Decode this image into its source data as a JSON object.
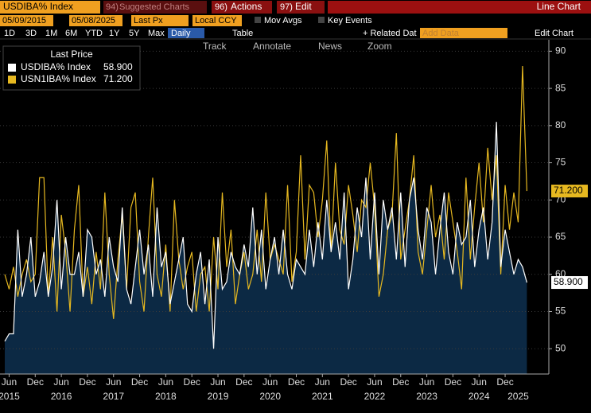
{
  "ui": {
    "ticker": "USDIBA% Index",
    "suggested_num": "94)",
    "suggested": "Suggested Charts",
    "actions_num": "96)",
    "actions": "Actions",
    "edit_num": "97)",
    "edit": "Edit",
    "chart_type": "Line Chart",
    "start_date": "05/09/2015",
    "end_date": "05/08/2025",
    "field": "Last Px",
    "currency": "Local CCY",
    "mov_avgs": "Mov Avgs",
    "key_events": "Key Events",
    "periods": [
      "1D",
      "3D",
      "1M",
      "6M",
      "YTD",
      "1Y",
      "5Y",
      "Max"
    ],
    "frequency": "Daily",
    "table": "Table",
    "related": "+ Related Dat",
    "add_data": "Add Data",
    "edit_chart": "Edit Chart",
    "tools": [
      "Track",
      "Annotate",
      "News",
      "Zoom"
    ]
  },
  "chart_data": {
    "type": "line",
    "legend_title": "Last Price",
    "x": [
      "2015-05",
      "2015-06",
      "2015-07",
      "2015-08",
      "2015-09",
      "2015-10",
      "2015-11",
      "2015-12",
      "2016-01",
      "2016-02",
      "2016-03",
      "2016-04",
      "2016-05",
      "2016-06",
      "2016-07",
      "2016-08",
      "2016-09",
      "2016-10",
      "2016-11",
      "2016-12",
      "2017-01",
      "2017-02",
      "2017-03",
      "2017-04",
      "2017-05",
      "2017-06",
      "2017-07",
      "2017-08",
      "2017-09",
      "2017-10",
      "2017-11",
      "2017-12",
      "2018-01",
      "2018-02",
      "2018-03",
      "2018-04",
      "2018-05",
      "2018-06",
      "2018-07",
      "2018-08",
      "2018-09",
      "2018-10",
      "2018-11",
      "2018-12",
      "2019-01",
      "2019-02",
      "2019-03",
      "2019-04",
      "2019-05",
      "2019-06",
      "2019-07",
      "2019-08",
      "2019-09",
      "2019-10",
      "2019-11",
      "2019-12",
      "2020-01",
      "2020-02",
      "2020-03",
      "2020-04",
      "2020-05",
      "2020-06",
      "2020-07",
      "2020-08",
      "2020-09",
      "2020-10",
      "2020-11",
      "2020-12",
      "2021-01",
      "2021-02",
      "2021-03",
      "2021-04",
      "2021-05",
      "2021-06",
      "2021-07",
      "2021-08",
      "2021-09",
      "2021-10",
      "2021-11",
      "2021-12",
      "2022-01",
      "2022-02",
      "2022-03",
      "2022-04",
      "2022-05",
      "2022-06",
      "2022-07",
      "2022-08",
      "2022-09",
      "2022-10",
      "2022-11",
      "2022-12",
      "2023-01",
      "2023-02",
      "2023-03",
      "2023-04",
      "2023-05",
      "2023-06",
      "2023-07",
      "2023-08",
      "2023-09",
      "2023-10",
      "2023-11",
      "2023-12",
      "2024-01",
      "2024-02",
      "2024-03",
      "2024-04",
      "2024-05",
      "2024-06",
      "2024-07",
      "2024-08",
      "2024-09",
      "2024-10",
      "2024-11",
      "2024-12",
      "2025-01",
      "2025-02",
      "2025-03",
      "2025-04",
      "2025-05"
    ],
    "series": [
      {
        "name": "USDIBA% Index",
        "color": "#ffffff",
        "last_label": "58.900",
        "fill": "#0c2944",
        "values": [
          51,
          52,
          52,
          66,
          57,
          60,
          65,
          57,
          59,
          63,
          57,
          61,
          70,
          58,
          65,
          60,
          60,
          63,
          57,
          66,
          65,
          60,
          62,
          57,
          65,
          61,
          59,
          69,
          58,
          56,
          61,
          66,
          60,
          64,
          57,
          69,
          61,
          63,
          56,
          59,
          62,
          65,
          56,
          55,
          60,
          63,
          56,
          62,
          50,
          65,
          58,
          59,
          63,
          61,
          60,
          64,
          61,
          69,
          60,
          66,
          58,
          62,
          65,
          60,
          66,
          60,
          58,
          62,
          61,
          60,
          66,
          61,
          67,
          62,
          70,
          63,
          67,
          62,
          71,
          58,
          62,
          69,
          65,
          73,
          62,
          71,
          60,
          70,
          66,
          69,
          62,
          71,
          61,
          70,
          73,
          66,
          62,
          69,
          67,
          60,
          66,
          71,
          63,
          60,
          67,
          64,
          65,
          70,
          61,
          66,
          69,
          62,
          67,
          80.5,
          61,
          66,
          63,
          60,
          62,
          61,
          58.9
        ]
      },
      {
        "name": "USN1IBA% Index",
        "color": "#e6b820",
        "last_label": "71.200",
        "values": [
          60,
          58,
          61,
          57,
          60,
          62,
          59,
          60,
          73,
          73,
          57,
          65,
          55,
          68,
          63,
          55,
          66,
          72,
          57,
          61,
          56,
          63,
          58,
          71,
          60,
          54,
          62,
          68,
          58,
          69,
          71,
          59,
          55,
          65,
          73,
          60,
          57,
          64,
          55,
          70,
          62,
          58,
          61,
          63,
          55,
          60,
          61,
          55,
          65,
          58,
          71,
          61,
          66,
          56,
          60,
          63,
          58,
          60,
          66,
          59,
          71,
          62,
          64,
          62,
          60,
          72,
          59,
          63,
          76,
          62,
          72,
          71,
          65,
          70,
          78,
          63,
          75,
          66,
          64,
          72,
          68,
          63,
          70,
          69,
          75,
          69,
          57,
          60,
          66,
          68,
          79,
          62,
          66,
          70,
          76,
          63,
          60,
          66,
          72,
          65,
          68,
          62,
          71,
          67,
          63,
          58,
          73,
          62,
          69,
          75,
          67,
          77,
          70,
          76,
          60,
          72,
          66,
          71,
          67,
          88,
          71.2
        ]
      }
    ],
    "ylim": [
      46.6,
      91
    ],
    "yticks": [
      50,
      55,
      60,
      65,
      70,
      75,
      80,
      85,
      90
    ],
    "grid": true,
    "xticks": [
      {
        "value": "2015-06",
        "label": "Jun"
      },
      {
        "value": "2015-12",
        "label": "Dec"
      },
      {
        "value": "2016-06",
        "label": "Jun"
      },
      {
        "value": "2016-12",
        "label": "Dec"
      },
      {
        "value": "2017-06",
        "label": "Jun"
      },
      {
        "value": "2017-12",
        "label": "Dec"
      },
      {
        "value": "2018-06",
        "label": "Jun"
      },
      {
        "value": "2018-12",
        "label": "Dec"
      },
      {
        "value": "2019-06",
        "label": "Jun"
      },
      {
        "value": "2019-12",
        "label": "Dec"
      },
      {
        "value": "2020-06",
        "label": "Jun"
      },
      {
        "value": "2020-12",
        "label": "Dec"
      },
      {
        "value": "2021-06",
        "label": "Jun"
      },
      {
        "value": "2021-12",
        "label": "Dec"
      },
      {
        "value": "2022-06",
        "label": "Jun"
      },
      {
        "value": "2022-12",
        "label": "Dec"
      },
      {
        "value": "2023-06",
        "label": "Jun"
      },
      {
        "value": "2023-12",
        "label": "Dec"
      },
      {
        "value": "2024-06",
        "label": "Jun"
      },
      {
        "value": "2024-12",
        "label": "Dec"
      }
    ],
    "year_labels": [
      {
        "value": "2015-06",
        "label": "2015"
      },
      {
        "value": "2016-06",
        "label": "2016"
      },
      {
        "value": "2017-06",
        "label": "2017"
      },
      {
        "value": "2018-06",
        "label": "2018"
      },
      {
        "value": "2019-06",
        "label": "2019"
      },
      {
        "value": "2020-06",
        "label": "2020"
      },
      {
        "value": "2021-06",
        "label": "2021"
      },
      {
        "value": "2022-06",
        "label": "2022"
      },
      {
        "value": "2023-06",
        "label": "2023"
      },
      {
        "value": "2024-06",
        "label": "2024"
      },
      {
        "value": "2025-03",
        "label": "2025"
      }
    ]
  }
}
